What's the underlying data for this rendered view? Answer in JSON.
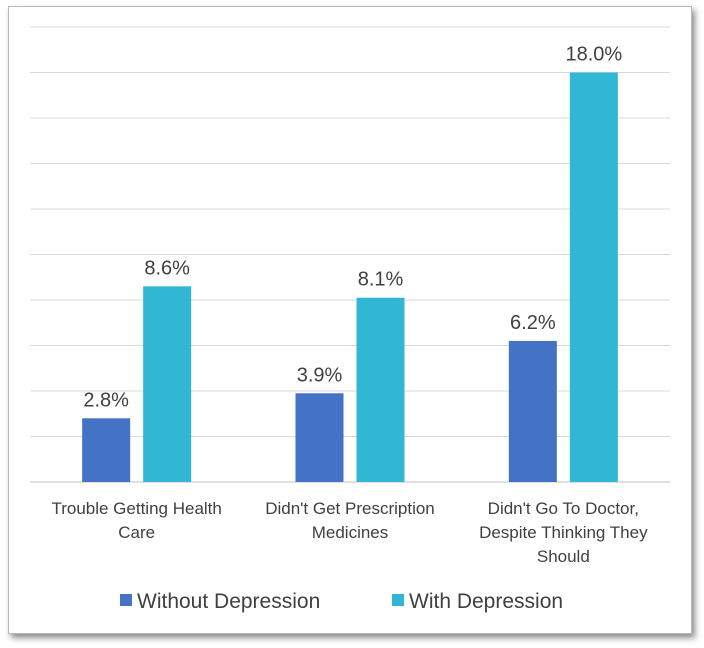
{
  "chart_data": {
    "type": "bar",
    "title": "",
    "xlabel": "",
    "ylabel": "",
    "categories": [
      [
        "Trouble Getting Health",
        "Care"
      ],
      [
        "Didn't Get Prescription",
        "Medicines"
      ],
      [
        "Didn't Go To Doctor,",
        "Despite Thinking They",
        "Should"
      ]
    ],
    "series": [
      {
        "name": "Without Depression",
        "color": "#4472C4",
        "values": [
          2.8,
          3.9,
          6.2
        ],
        "labels": [
          "2.8%",
          "3.9%",
          "6.2%"
        ]
      },
      {
        "name": "With Depression",
        "color": "#31B6D4",
        "values": [
          8.6,
          8.1,
          18.0
        ],
        "labels": [
          "8.6%",
          "8.1%",
          "18.0%"
        ]
      }
    ],
    "ylim": [
      0,
      20
    ],
    "grid": true,
    "legend": "bottom"
  }
}
